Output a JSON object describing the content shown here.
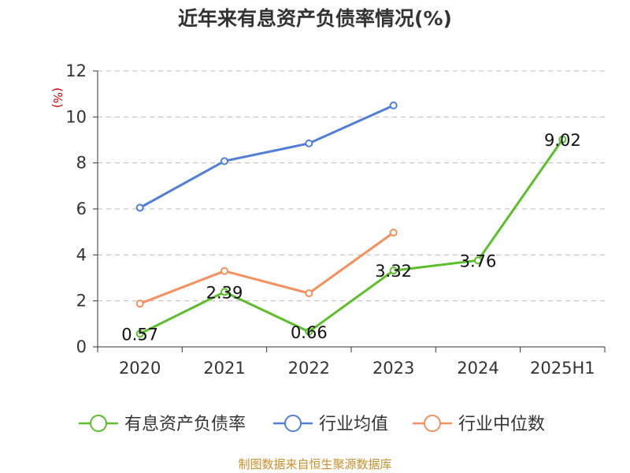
{
  "chart_data": {
    "type": "line",
    "title": "近年来有息资产负债率情况(%)",
    "ylabel": "(%)",
    "categories": [
      "2020",
      "2021",
      "2022",
      "2023",
      "2024",
      "2025H1"
    ],
    "ylim": [
      0,
      12
    ],
    "yticks": [
      0,
      2,
      4,
      6,
      8,
      10,
      12
    ],
    "grid": true,
    "legend_position": "bottom",
    "series": [
      {
        "name": "有息资产负债率",
        "color": "#5cbf2a",
        "values": [
          0.57,
          2.39,
          0.66,
          3.32,
          3.76,
          9.02
        ],
        "show_labels": true
      },
      {
        "name": "行业均值",
        "color": "#4f7fd9",
        "values": [
          6.05,
          8.08,
          8.85,
          10.5,
          null,
          null
        ],
        "show_labels": false
      },
      {
        "name": "行业中位数",
        "color": "#f5905e",
        "values": [
          1.88,
          3.3,
          2.33,
          4.97,
          null,
          null
        ],
        "show_labels": false
      }
    ]
  },
  "source_text": "制图数据来自恒生聚源数据库"
}
